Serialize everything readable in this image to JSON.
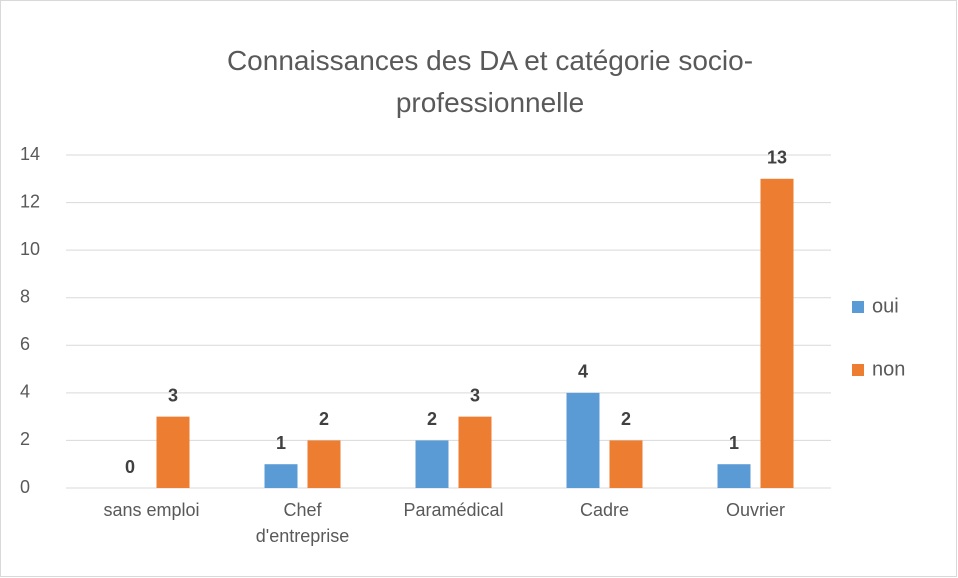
{
  "chart_data": {
    "type": "bar",
    "title": "Connaissances des DA et catégorie socio-professionnelle",
    "categories": [
      "sans emploi",
      "Chef d'entreprise",
      "Paramédical",
      "Cadre",
      "Ouvrier"
    ],
    "series": [
      {
        "name": "oui",
        "color": "#5b9bd5",
        "values": [
          0,
          1,
          2,
          4,
          1
        ]
      },
      {
        "name": "non",
        "color": "#ed7d31",
        "values": [
          3,
          2,
          3,
          2,
          13
        ]
      }
    ],
    "ylim": [
      0,
      14
    ],
    "yticks": [
      0,
      2,
      4,
      6,
      8,
      10,
      12,
      14
    ],
    "grid": true,
    "legend": "right"
  }
}
